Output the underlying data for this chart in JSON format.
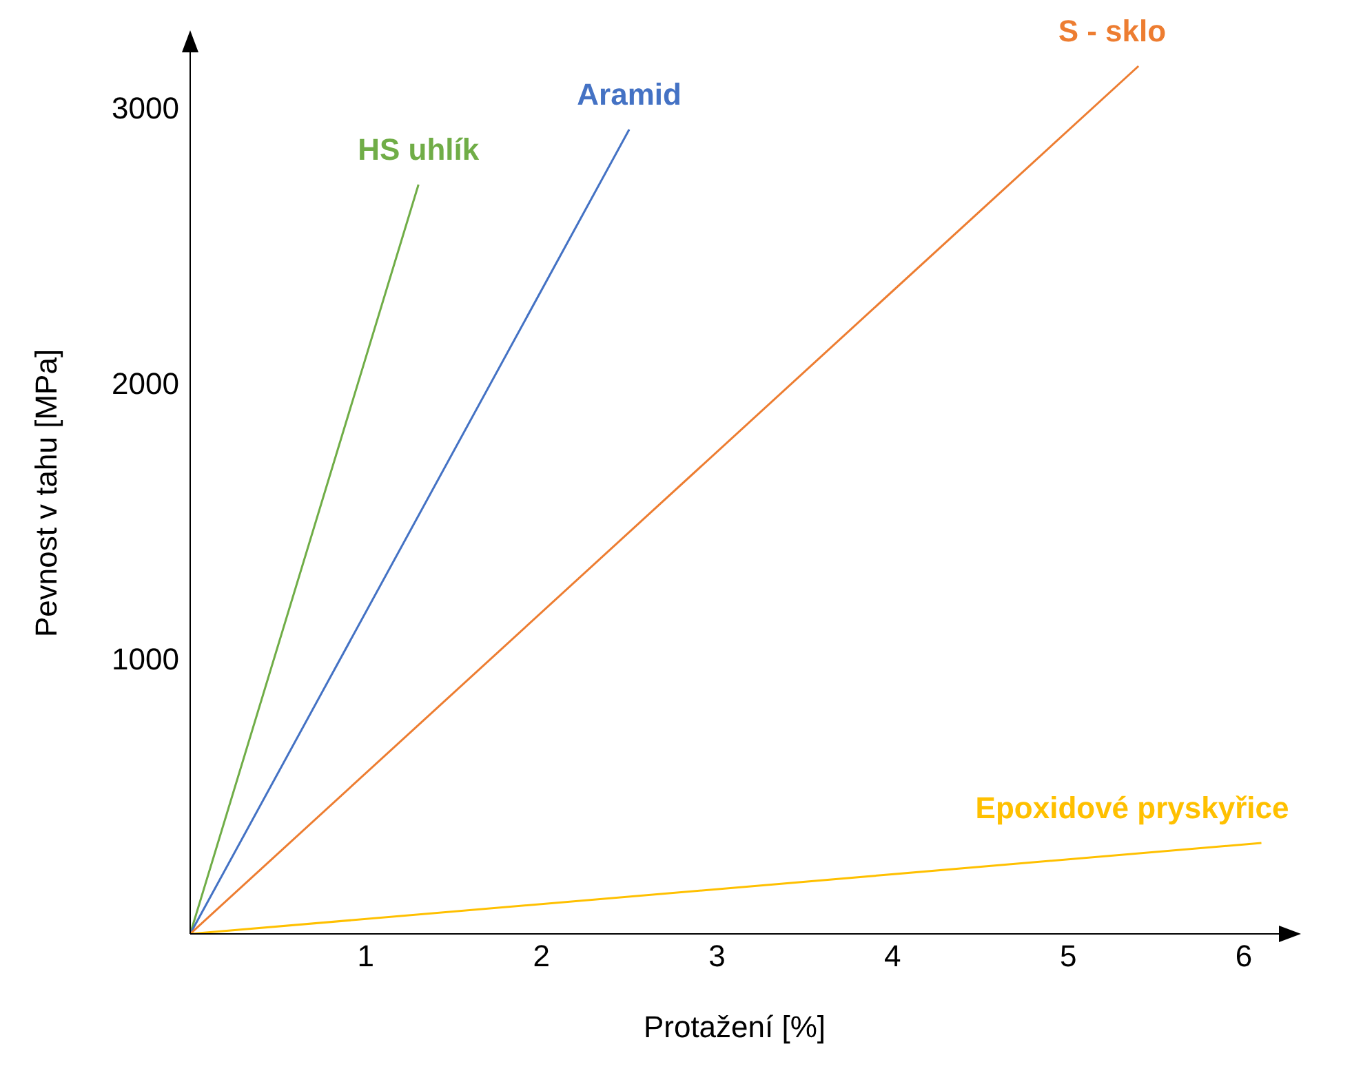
{
  "chart_data": {
    "type": "line",
    "xlabel": "Protažení [%]",
    "ylabel": "Pevnost v tahu [MPa]",
    "xlim": [
      0,
      6.2
    ],
    "ylim": [
      0,
      3200
    ],
    "xticks": [
      1,
      2,
      3,
      4,
      5,
      6
    ],
    "yticks": [
      1000,
      2000,
      3000
    ],
    "marker": "none",
    "line_style": "solid",
    "series": [
      {
        "name": "HS uhlík",
        "color": "#70ad47",
        "x": [
          0,
          1.3
        ],
        "values": [
          0,
          2720
        ]
      },
      {
        "name": "Aramid",
        "color": "#4472c4",
        "x": [
          0,
          2.5
        ],
        "values": [
          0,
          2920
        ]
      },
      {
        "name": "S - sklo",
        "color": "#ed7d31",
        "x": [
          0,
          5.4
        ],
        "values": [
          0,
          3150
        ]
      },
      {
        "name": "Epoxidové pryskyřice",
        "color": "#ffc000",
        "x": [
          0,
          6.1
        ],
        "values": [
          0,
          330
        ]
      }
    ]
  }
}
